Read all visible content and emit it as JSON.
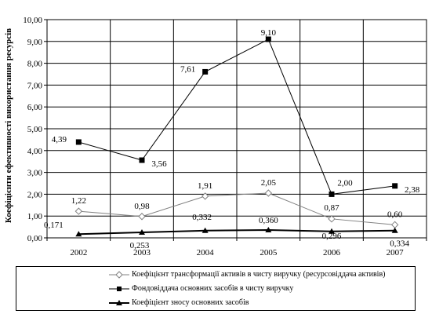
{
  "chart_data": {
    "type": "line",
    "ylabel": "Коефіцієнти ефективності використання ресурсів",
    "categories": [
      "2002",
      "2003",
      "2004",
      "2005",
      "2006",
      "2007"
    ],
    "ylim": [
      0,
      10
    ],
    "yticks": [
      "0,00",
      "1,00",
      "2,00",
      "3,00",
      "4,00",
      "5,00",
      "6,00",
      "7,00",
      "8,00",
      "9,00",
      "10,00"
    ],
    "grid": "major y and x",
    "legend_position": "bottom",
    "series": [
      {
        "name": "Коефіцієнт трансформації активів в чисту виручку (ресурсовіддача активів)",
        "marker": "diamond-open",
        "values": [
          1.22,
          0.98,
          1.91,
          2.05,
          0.87,
          0.6
        ],
        "labels": [
          "1,22",
          "0,98",
          "1,91",
          "2,05",
          "0,87",
          "0,60"
        ]
      },
      {
        "name": "Фондовіддача основних засобів в чисту виручку",
        "marker": "square-filled",
        "values": [
          4.39,
          3.56,
          7.61,
          9.1,
          2.0,
          2.38
        ],
        "labels": [
          "4,39",
          "3,56",
          "7,61",
          "9,10",
          "2,00",
          "2,38"
        ]
      },
      {
        "name": "Коефіцієнт зносу основних засобів",
        "marker": "triangle-filled",
        "values": [
          0.171,
          0.253,
          0.332,
          0.36,
          0.296,
          0.334
        ],
        "labels": [
          "0,171",
          "0,253",
          "0,332",
          "0,360",
          "0,296",
          "0,334"
        ]
      }
    ]
  }
}
